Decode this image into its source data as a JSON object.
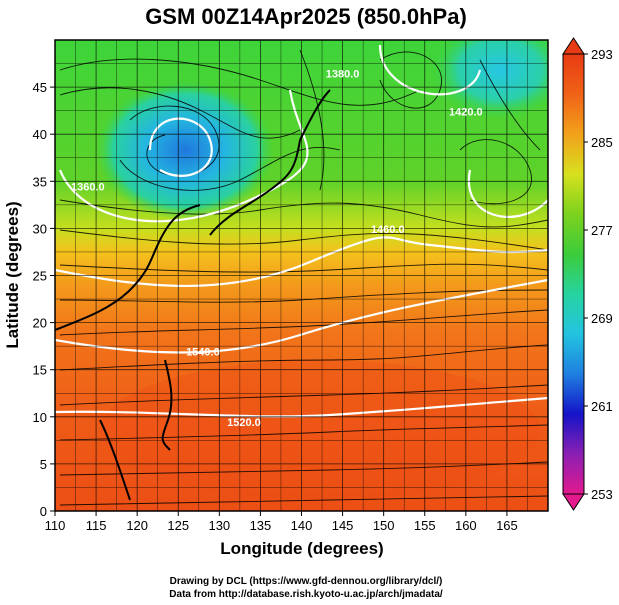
{
  "title": "GSM 00Z14Apr2025 (850.0hPa)",
  "xlabel": "Longitude (degrees)",
  "ylabel": "Latitude  (degrees)",
  "credits": [
    "Drawing by DCL (https://www.gfd-dennou.org/library/dcl/)",
    "Data from http://database.rish.kyoto-u.ac.jp/arch/jmadata/"
  ],
  "map": {
    "lon_range": [
      110,
      170
    ],
    "lat_range": [
      0,
      50
    ],
    "lon_ticks": [
      110,
      115,
      120,
      125,
      130,
      135,
      140,
      145,
      150,
      155,
      160,
      165
    ],
    "lat_ticks": [
      0,
      5,
      10,
      15,
      20,
      25,
      30,
      35,
      40,
      45
    ],
    "grid": true,
    "field": "temperature",
    "overlay": [
      "streamlines",
      "geopotential height contours",
      "coastlines"
    ],
    "contour_labels": [
      {
        "text": "1520.0",
        "lon": 133,
        "lat": 9.0
      },
      {
        "text": "1540.0",
        "lon": 128,
        "lat": 16.5
      },
      {
        "text": "1460.0",
        "lon": 150.5,
        "lat": 29.5
      },
      {
        "text": "1420.0",
        "lon": 160,
        "lat": 42.0
      },
      {
        "text": "1380.0",
        "lon": 145,
        "lat": 46.0
      },
      {
        "text": "1360.0",
        "lon": 114,
        "lat": 34.0
      }
    ]
  },
  "colorbar": {
    "min": 253,
    "max": 293,
    "tick_labels": [
      "293",
      "285",
      "277",
      "269",
      "261",
      "253"
    ],
    "tick_values": [
      293,
      285,
      277,
      269,
      261,
      253
    ],
    "colors": [
      "#e31a8e",
      "#8b1fb3",
      "#1414c8",
      "#1f7fe0",
      "#22c4e0",
      "#27d3a0",
      "#3ccc3a",
      "#7dd21e",
      "#d7e01e",
      "#f2a11b",
      "#f06217",
      "#e83a14"
    ]
  }
}
